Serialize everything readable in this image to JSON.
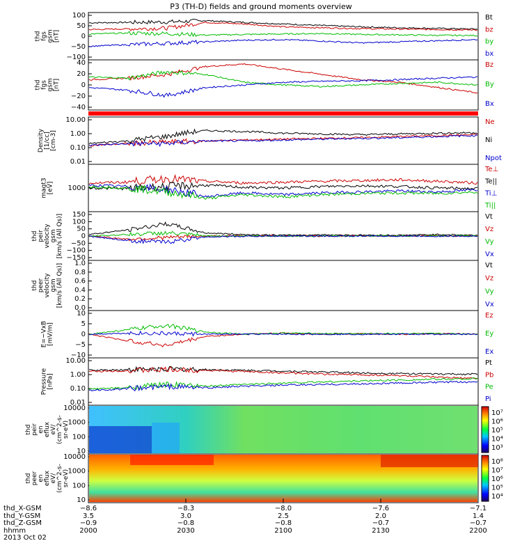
{
  "title": "P3 (TH-D) fields and ground moments overview",
  "time_ticks": [
    "2000",
    "2030",
    "2100",
    "2130",
    "2200"
  ],
  "date": "2013 Oct 02",
  "chart_data": {
    "type": "line",
    "panels": [
      {
        "ylabel": [
          "thd",
          "fgs",
          "gsm",
          "[nT]"
        ],
        "yticks": [
          "100",
          "50",
          "0",
          "−50",
          "−100"
        ],
        "ylim": [
          -100,
          100
        ],
        "series": [
          {
            "name": "Bt",
            "color": "#000000",
            "y": [
              60,
              62,
              64,
              70,
              62,
              55,
              48,
              42,
              38,
              35,
              32
            ]
          },
          {
            "name": "bz",
            "color": "#cc0000",
            "y": [
              30,
              33,
              36,
              62,
              55,
              42,
              38,
              34,
              32,
              30,
              28
            ]
          },
          {
            "name": "by",
            "color": "#00bb00",
            "y": [
              10,
              14,
              12,
              5,
              8,
              10,
              12,
              8,
              6,
              4,
              3
            ]
          },
          {
            "name": "bx",
            "color": "#0000cc",
            "y": [
              -45,
              -38,
              -32,
              -25,
              -18,
              -15,
              -22,
              -30,
              -25,
              -20,
              -15
            ]
          }
        ]
      },
      {
        "ylabel": [
          "thd",
          "fgs",
          "gsm",
          "[nT]"
        ],
        "yticks": [
          "40",
          "20",
          "0",
          "−20",
          "−40"
        ],
        "ylim": [
          -50,
          40
        ],
        "series": [
          {
            "name": "Bz",
            "color": "#cc0000",
            "y": [
              5,
              8,
              15,
              30,
              35,
              25,
              15,
              5,
              0,
              -10,
              -20
            ]
          },
          {
            "name": "By",
            "color": "#00bb00",
            "y": [
              10,
              8,
              20,
              15,
              0,
              -5,
              -8,
              -5,
              -2,
              0,
              -5
            ]
          },
          {
            "name": "Bx",
            "color": "#0000cc",
            "y": [
              -10,
              -15,
              -25,
              -10,
              -5,
              0,
              2,
              3,
              5,
              8,
              10
            ]
          }
        ]
      },
      {
        "ylabel": [
          "Density",
          "[1/cc]",
          "[cm-3]"
        ],
        "yticks": [
          "10.00",
          "1.00",
          "0.10",
          "0.01"
        ],
        "log": true,
        "ylim": [
          0.01,
          10
        ],
        "series": [
          {
            "name": "Ne",
            "color": "#cc0000",
            "y": [
              0.15,
              0.2,
              0.25,
              0.3,
              0.35,
              0.4,
              0.45,
              0.5,
              0.6,
              0.7,
              0.8
            ]
          },
          {
            "name": "Ni",
            "color": "#000000",
            "y": [
              0.2,
              0.3,
              0.6,
              1.5,
              1.3,
              1.0,
              0.9,
              0.8,
              0.9,
              1.0,
              1.1
            ]
          },
          {
            "name": "Npot",
            "color": "#0000cc",
            "y": [
              0.15,
              0.2,
              0.2,
              0.3,
              0.3,
              0.35,
              0.4,
              0.45,
              0.5,
              0.6,
              0.7
            ]
          }
        ]
      },
      {
        "ylabel": [
          "magt3",
          "[eV]"
        ],
        "yticks": [
          "1000"
        ],
        "log": true,
        "ylim": [
          300,
          30000
        ],
        "series": [
          {
            "name": "Te⊥",
            "color": "#cc0000",
            "y": [
              5000,
              5500,
              8000,
              6000,
              5000,
              5500,
              6000,
              6500,
              7000,
              6000,
              5000
            ]
          },
          {
            "name": "Te||",
            "color": "#000000",
            "y": [
              3000,
              2800,
              3500,
              4000,
              3200,
              3000,
              3500,
              3800,
              3500,
              3000,
              2800
            ]
          },
          {
            "name": "Ti⊥",
            "color": "#0000cc",
            "y": [
              4000,
              3500,
              2500,
              1200,
              1800,
              1500,
              1800,
              2000,
              2200,
              2000,
              2500
            ]
          },
          {
            "name": "Ti||",
            "color": "#00bb00",
            "y": [
              3500,
              3000,
              2000,
              1000,
              1500,
              1200,
              1500,
              1700,
              1800,
              1700,
              2000
            ]
          }
        ]
      },
      {
        "ylabel": [
          "thd",
          "peir",
          "velocity",
          "gsm",
          "[km/s (All Qs)]"
        ],
        "yticks": [
          "150",
          "100",
          "50",
          "0",
          "−50",
          "−100",
          "−150"
        ],
        "ylim": [
          -150,
          150
        ],
        "series": [
          {
            "name": "Vt",
            "color": "#000000",
            "y": [
              10,
              40,
              80,
              20,
              10,
              5,
              8,
              6,
              5,
              10,
              5
            ]
          },
          {
            "name": "Vz",
            "color": "#cc0000",
            "y": [
              0,
              -20,
              -10,
              0,
              2,
              1,
              0,
              1,
              0,
              1,
              0
            ]
          },
          {
            "name": "Vy",
            "color": "#00bb00",
            "y": [
              0,
              10,
              20,
              0,
              1,
              0,
              1,
              0,
              1,
              2,
              1
            ]
          },
          {
            "name": "Vx",
            "color": "#0000cc",
            "y": [
              0,
              -30,
              -40,
              -5,
              -2,
              0,
              -1,
              0,
              0,
              -1,
              0
            ]
          }
        ]
      },
      {
        "ylabel": [
          "thd",
          "peer",
          "velocity",
          "gsm",
          "[km/s (All Qs)]"
        ],
        "yticks": [
          "1.0",
          "0.8",
          "0.6",
          "0.4",
          "0.2",
          "0.0"
        ],
        "ylim": [
          0,
          1
        ],
        "series": [
          {
            "name": "Vt",
            "color": "#000000",
            "y": []
          },
          {
            "name": "Vz",
            "color": "#cc0000",
            "y": []
          },
          {
            "name": "Vy",
            "color": "#00bb00",
            "y": []
          },
          {
            "name": "Vx",
            "color": "#0000cc",
            "y": []
          }
        ]
      },
      {
        "ylabel": [
          "E=−VxB",
          "[mV/m]"
        ],
        "yticks": [
          "10",
          "5",
          "0",
          "−5",
          "−10"
        ],
        "ylim": [
          -10,
          10
        ],
        "series": [
          {
            "name": "Ez",
            "color": "#cc0000",
            "y": [
              0,
              -3,
              -5,
              -1,
              0,
              0.5,
              0,
              0.3,
              0,
              0.2,
              0
            ]
          },
          {
            "name": "Ey",
            "color": "#00bb00",
            "y": [
              0,
              2,
              4,
              1,
              0,
              0.5,
              0.3,
              0.2,
              0.3,
              0.2,
              0.1
            ]
          },
          {
            "name": "Ex",
            "color": "#0000cc",
            "y": [
              0,
              0.5,
              0.3,
              0,
              0,
              0,
              0,
              0,
              0,
              0,
              0
            ]
          }
        ]
      },
      {
        "ylabel": [
          "Pressure",
          "[nPa]"
        ],
        "yticks": [
          "10.00",
          "1.00",
          "0.10",
          "0.01"
        ],
        "log": true,
        "ylim": [
          0.01,
          10
        ],
        "series": [
          {
            "name": "Pt",
            "color": "#000000",
            "y": [
              1.8,
              2.0,
              2.2,
              2.0,
              1.8,
              1.6,
              1.4,
              1.2,
              1.1,
              1.0,
              1.0
            ]
          },
          {
            "name": "Pb",
            "color": "#cc0000",
            "y": [
              1.5,
              1.7,
              2.0,
              1.8,
              1.5,
              1.2,
              1.0,
              0.9,
              0.8,
              0.6,
              0.5
            ]
          },
          {
            "name": "Pe",
            "color": "#00bb00",
            "y": [
              0.1,
              0.12,
              0.2,
              0.15,
              0.2,
              0.25,
              0.3,
              0.35,
              0.4,
              0.45,
              0.5
            ]
          },
          {
            "name": "Pi",
            "color": "#0000cc",
            "y": [
              0.08,
              0.1,
              0.15,
              0.12,
              0.15,
              0.18,
              0.2,
              0.22,
              0.25,
              0.28,
              0.3
            ]
          }
        ]
      },
      {
        "type": "heatmap",
        "ylabel": [
          "thd",
          "peir",
          "en",
          "eflux",
          "eV/",
          "(cm^2-s-",
          "sr-eV)"
        ],
        "yticks": [
          "10000",
          "1000",
          "100",
          "10"
        ],
        "colorbar_ticks": [
          "10⁷",
          "10⁶",
          "10⁵",
          "10⁴",
          "10³"
        ]
      },
      {
        "type": "heatmap",
        "ylabel": [
          "thd",
          "peer",
          "en",
          "eflux",
          "eV/",
          "(cm^2-s-",
          "sr-eV)"
        ],
        "yticks": [
          "10000",
          "1000",
          "100",
          "10"
        ],
        "colorbar_ticks": [
          "10⁸",
          "10⁷",
          "10⁶",
          "10⁵",
          "10⁴"
        ]
      }
    ]
  },
  "ephemeris": [
    {
      "label": "thd_X-GSM",
      "values": [
        "−8.6",
        "−8.3",
        "−8.0",
        "−7.6",
        "−7.1"
      ]
    },
    {
      "label": "thd_Y-GSM",
      "values": [
        "3.5",
        "3.0",
        "2.5",
        "2.0",
        "1.4"
      ]
    },
    {
      "label": "thd_Z-GSM",
      "values": [
        "−0.9",
        "−0.8",
        "−0.8",
        "−0.7",
        "−0.7"
      ]
    },
    {
      "label": "hhmm",
      "values": [
        "2000",
        "2030",
        "2100",
        "2130",
        "2200"
      ]
    }
  ]
}
